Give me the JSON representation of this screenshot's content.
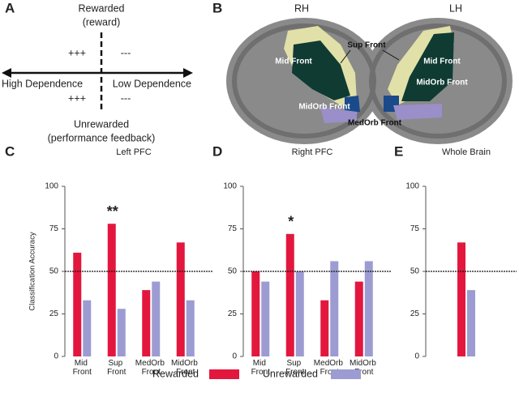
{
  "panel_labels": [
    "A",
    "B",
    "C",
    "D",
    "E"
  ],
  "diagram": {
    "top": "Rewarded",
    "top_sub": "(reward)",
    "left": "High Dependence",
    "right": "Low Dependence",
    "bottom": "Unrewarded",
    "bottom_sub": "(performance feedback)",
    "upper_left": "+++",
    "upper_right": "---",
    "lower_left": "+++",
    "lower_right": "---"
  },
  "brain": {
    "right_label": "RH",
    "left_label": "LH",
    "sup_front": "Sup Front",
    "mid_front_rh": "Mid Front",
    "mid_front_lh": "Mid Front",
    "midorb_rh": "MidOrb Front",
    "midorb_lh": "MidOrb Front",
    "medorb": "MedOrb Front"
  },
  "legend": [
    {
      "name": "Rewarded",
      "color": "#e3173e"
    },
    {
      "name": "Unrewarded",
      "color": "#9c9cd2"
    }
  ],
  "chart_data": [
    {
      "type": "bar",
      "title": "Left PFC",
      "y_label": "Classification Accuracy",
      "categories": [
        "Mid Front",
        "Sup Front",
        "MedOrb Front",
        "MidOrb Front"
      ],
      "series": [
        {
          "values": [
            61,
            78,
            39,
            67
          ]
        },
        {
          "values": [
            33,
            28,
            44,
            33
          ]
        }
      ],
      "ylim": [
        0,
        100
      ],
      "yticks": [
        0,
        25,
        50,
        75,
        100
      ],
      "hline": 50,
      "annotation": {
        "text": "**",
        "category": "Sup Front"
      }
    },
    {
      "type": "bar",
      "title": "Right PFC",
      "categories": [
        "Mid Front",
        "Sup Front",
        "MedOrb Front",
        "MidOrb Front"
      ],
      "series": [
        {
          "values": [
            50,
            72,
            33,
            44
          ]
        },
        {
          "values": [
            44,
            50,
            56,
            56
          ]
        }
      ],
      "ylim": [
        0,
        100
      ],
      "yticks": [
        0,
        25,
        50,
        75,
        100
      ],
      "hline": 50,
      "annotation": {
        "text": "*",
        "category": "Sup Front"
      }
    },
    {
      "type": "bar",
      "title": "Whole Brain",
      "categories": [
        null
      ],
      "series": [
        {
          "values": [
            67
          ]
        },
        {
          "values": [
            39
          ]
        }
      ],
      "ylim": [
        0,
        100
      ],
      "yticks": [
        0,
        25,
        50,
        75,
        100
      ],
      "hline": 50
    }
  ]
}
